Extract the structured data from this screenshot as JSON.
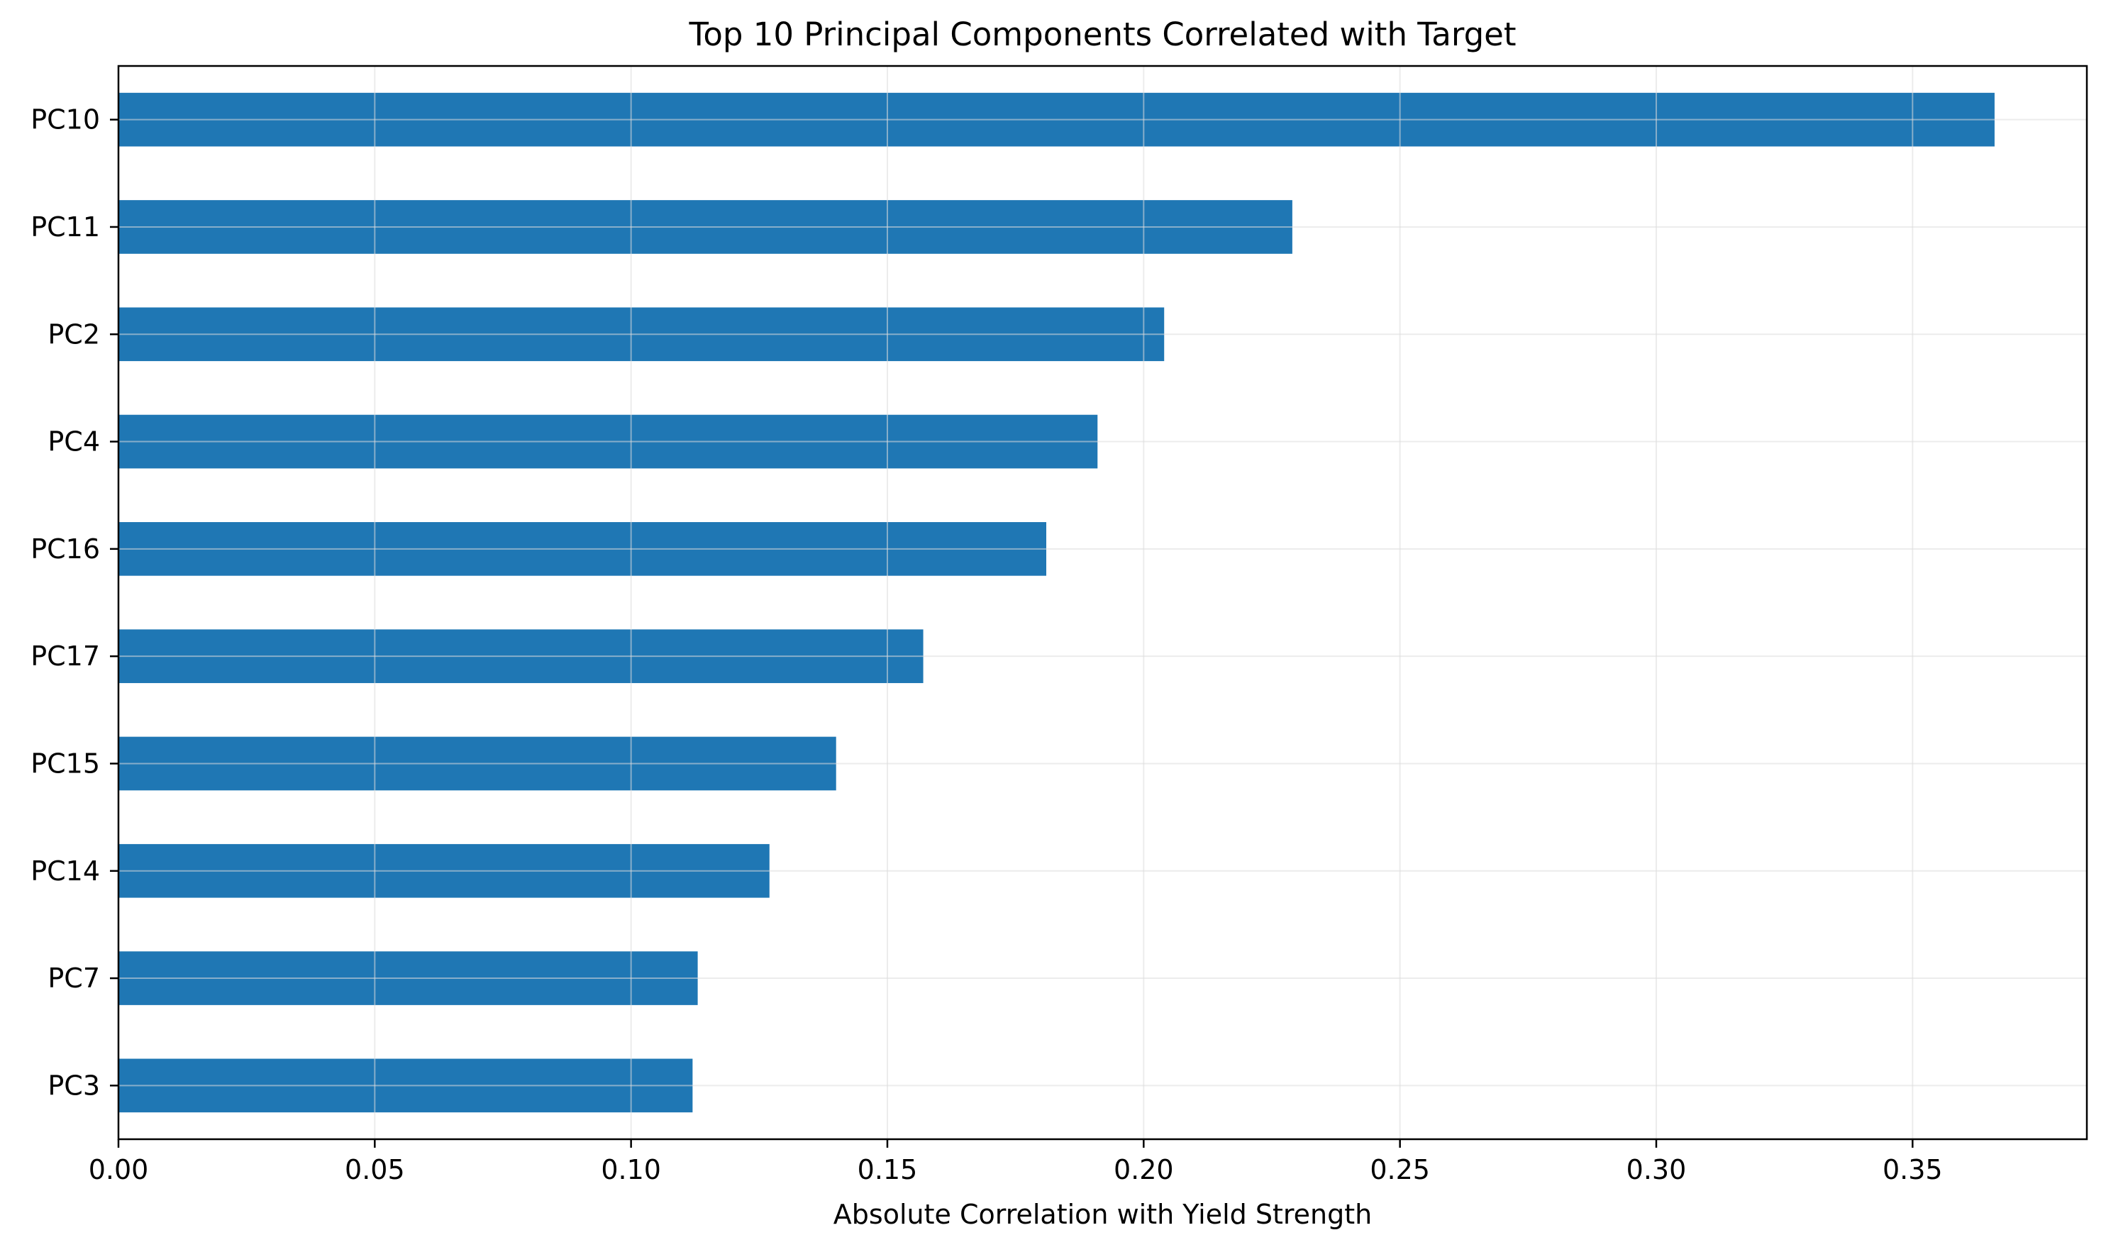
{
  "chart_data": {
    "type": "bar",
    "orientation": "horizontal",
    "title": "Top 10 Principal Components Correlated with Target",
    "xlabel": "Absolute Correlation with Yield Strength",
    "ylabel": "",
    "categories": [
      "PC10",
      "PC11",
      "PC2",
      "PC4",
      "PC16",
      "PC17",
      "PC15",
      "PC14",
      "PC7",
      "PC3"
    ],
    "values": [
      0.366,
      0.229,
      0.204,
      0.191,
      0.181,
      0.157,
      0.14,
      0.127,
      0.113,
      0.112
    ],
    "xlim": [
      0.0,
      0.384
    ],
    "x_ticks": [
      "0.00",
      "0.05",
      "0.10",
      "0.15",
      "0.20",
      "0.25",
      "0.30",
      "0.35"
    ],
    "grid": true,
    "bar_color": "#1f77b4",
    "grid_color": "#dcdcdc"
  }
}
